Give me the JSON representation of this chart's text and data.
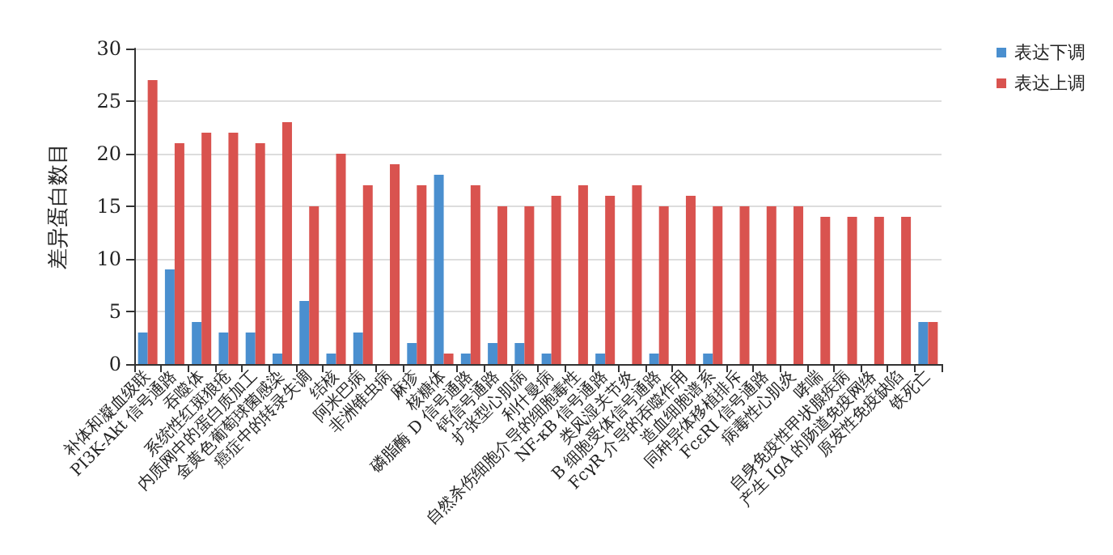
{
  "chart_data": {
    "type": "bar",
    "ylabel": "差异蛋白数目",
    "categories": [
      "补体和凝血级联",
      "PI3K-Akt 信号通路",
      "吞噬体",
      "系统性红斑狼疮",
      "内质网中的蛋白质加工",
      "金黄色葡萄球菌感染",
      "癌症中的转录失调",
      "结核",
      "阿米巴病",
      "非洲锥虫病",
      "麻疹",
      "核糖体",
      "磷脂酶 D 信号通路",
      "钙信号通路",
      "扩张型心肌病",
      "利什曼病",
      "自然杀伤细胞介导的细胞毒性",
      "NF-κB 信号通路",
      "类风湿关节炎",
      "B 细胞受体信号通路",
      "FcγR 介导的吞噬作用",
      "造血细胞谱系",
      "同种异体移植排斥",
      "FcεRI 信号通路",
      "病毒性心肌炎",
      "哮喘",
      "自身免疫性甲状腺疾病",
      "产生 IgA 的肠道免疫网络",
      "原发性免疫缺陷",
      "铁死亡"
    ],
    "series": [
      {
        "name": "表达下调",
        "color": "#4a8fcf",
        "values": [
          3,
          9,
          4,
          3,
          3,
          1,
          6,
          1,
          3,
          0,
          2,
          18,
          1,
          2,
          2,
          1,
          0,
          1,
          0,
          1,
          0,
          1,
          0,
          0,
          0,
          0,
          0,
          0,
          0,
          4
        ]
      },
      {
        "name": "表达上调",
        "color": "#d9534f",
        "values": [
          27,
          21,
          22,
          22,
          21,
          23,
          15,
          20,
          17,
          19,
          17,
          1,
          17,
          15,
          15,
          16,
          17,
          16,
          17,
          15,
          16,
          15,
          15,
          15,
          15,
          14,
          14,
          14,
          14,
          4
        ]
      }
    ],
    "ylim": [
      0,
      30
    ],
    "yticks": [
      0,
      5,
      10,
      15,
      20,
      25,
      30
    ],
    "grid": "y",
    "legend": "top right"
  }
}
